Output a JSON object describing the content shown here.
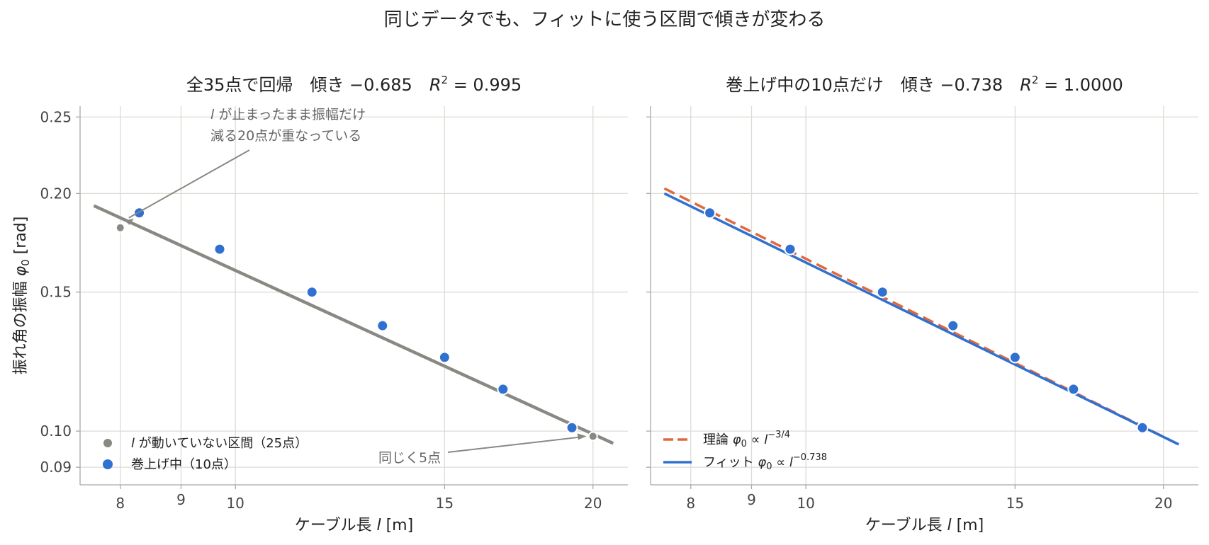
{
  "figure": {
    "suptitle": "同じデータでも、フィットに使う区間で傾きが変わる"
  },
  "colors": {
    "gray": "#8a8883",
    "blue": "#3070d0",
    "orange": "#e0683a"
  },
  "chart_data": [
    {
      "type": "scatter",
      "title": "全35点で回帰　傾き −0.685　R² = 0.995",
      "title_parts": {
        "prefix": "全35点で回帰　傾き −0.685　",
        "r": "R",
        "sup": "2",
        "suffix": " = 0.995"
      },
      "xlabel": "ケーブル長 l [m]",
      "xlabel_parts": {
        "text": "ケーブル長 ",
        "var": "l",
        "unit": " [m]"
      },
      "ylabel": "振れ角の振幅 φ0 [rad]",
      "ylabel_parts": {
        "text": "振れ角の振幅 ",
        "var": "φ",
        "sub": "0",
        "unit": " [rad]"
      },
      "x_scale": "log",
      "y_scale": "log",
      "xlim": [
        7.4,
        21.4
      ],
      "ylim": [
        0.0855,
        0.258
      ],
      "xticks": [
        8,
        9,
        10,
        15,
        20
      ],
      "xtick_labels": [
        "8",
        "9",
        "10",
        "15",
        "20"
      ],
      "yticks": [
        0.09,
        0.1,
        0.15,
        0.2,
        0.25
      ],
      "ytick_labels": [
        "0.09",
        "0.10",
        "0.15",
        "0.20",
        "0.25"
      ],
      "grid": true,
      "series": [
        {
          "name": "l が動いていない区間（25点）",
          "name_parts": {
            "var": "l",
            "text": " が動いていない区間（25点）"
          },
          "color": "#8a8883",
          "x": [
            8.0,
            20.0
          ],
          "y": [
            0.181,
            0.0985
          ]
        },
        {
          "name": "巻上げ中（10点）",
          "color": "#3070d0",
          "x": [
            8.3,
            9.7,
            11.6,
            13.3,
            15.0,
            16.8,
            19.2
          ],
          "y": [
            0.189,
            0.17,
            0.15,
            0.136,
            0.124,
            0.113,
            0.101
          ]
        }
      ],
      "fit_line": {
        "x": [
          7.6,
          20.8
        ],
        "y": [
          0.193,
          0.0965
        ],
        "color": "#8a8883",
        "style": "solid"
      },
      "annotations": [
        {
          "lines": [
            {
              "var": "l",
              "text": " が止まったまま振幅だけ"
            },
            {
              "var": "",
              "text": "減る20点が重なっている"
            }
          ],
          "points_to": {
            "x": 8.0,
            "y": 0.181
          }
        },
        {
          "lines": [
            {
              "var": "",
              "text": "同じく5点"
            }
          ],
          "points_to": {
            "x": 20.0,
            "y": 0.0985
          }
        }
      ],
      "legend_position": "lower-left"
    },
    {
      "type": "scatter",
      "title": "巻上げ中の10点だけ　傾き −0.738　R² = 1.0000",
      "title_parts": {
        "prefix": "巻上げ中の10点だけ　傾き −0.738　",
        "r": "R",
        "sup": "2",
        "suffix": " = 1.0000"
      },
      "xlabel": "ケーブル長 l [m]",
      "xlabel_parts": {
        "text": "ケーブル長 ",
        "var": "l",
        "unit": " [m]"
      },
      "x_scale": "log",
      "y_scale": "log",
      "xlim": [
        7.4,
        21.4
      ],
      "ylim": [
        0.0855,
        0.258
      ],
      "xticks": [
        8,
        9,
        10,
        15,
        20
      ],
      "xtick_labels": [
        "8",
        "9",
        "10",
        "15",
        "20"
      ],
      "yticks": [
        0.09,
        0.1,
        0.15,
        0.2,
        0.25
      ],
      "grid": true,
      "series": [
        {
          "name": "巻上げ中（10点）",
          "color": "#3070d0",
          "x": [
            8.3,
            9.7,
            11.6,
            13.3,
            15.0,
            16.8,
            19.2
          ],
          "y": [
            0.189,
            0.17,
            0.15,
            0.136,
            0.124,
            0.113,
            0.101
          ]
        }
      ],
      "lines": [
        {
          "name": "理論 φ0 ∝ l^−3/4",
          "name_parts": {
            "text": "理論  ",
            "phi": "φ",
            "sub": "0",
            "prop": " ∝ ",
            "var": "l",
            "sup": "−3/4"
          },
          "x": [
            7.6,
            20.6
          ],
          "y": [
            0.203,
            0.0962
          ],
          "color": "#e0683a",
          "style": "dashed"
        },
        {
          "name": "フィット φ0 ∝ l^−0.738",
          "name_parts": {
            "text": "フィット  ",
            "phi": "φ",
            "sub": "0",
            "prop": " ∝ ",
            "var": "l",
            "sup": "−0.738"
          },
          "x": [
            7.6,
            20.6
          ],
          "y": [
            0.2,
            0.0962
          ],
          "color": "#3070d0",
          "style": "solid"
        }
      ],
      "legend_position": "lower-left"
    }
  ]
}
